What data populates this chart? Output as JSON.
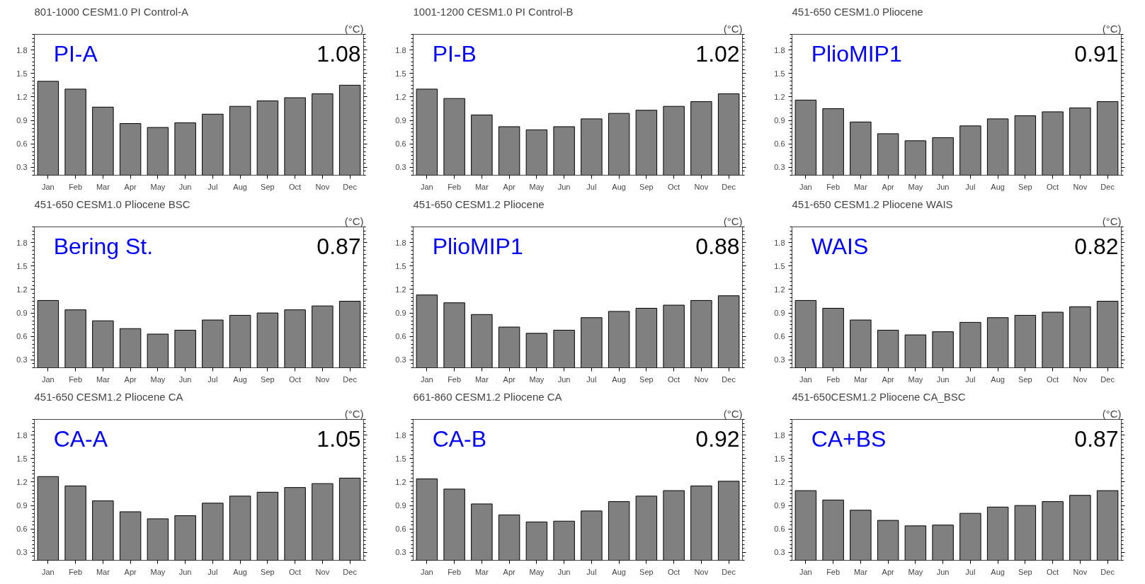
{
  "chart_data": [
    {
      "type": "bar",
      "title": "801-1000   CESM1.0 PI Control-A",
      "ylabel": "(°C)",
      "annotations": [
        "PI-A",
        "1.08"
      ],
      "categories": [
        "Jan",
        "Feb",
        "Mar",
        "Apr",
        "May",
        "Jun",
        "Jul",
        "Aug",
        "Sep",
        "Oct",
        "Nov",
        "Dec"
      ],
      "values": [
        1.4,
        1.3,
        1.07,
        0.86,
        0.81,
        0.87,
        0.98,
        1.08,
        1.15,
        1.19,
        1.24,
        1.35
      ],
      "color": "#808080",
      "ylim": [
        0.2,
        2.0
      ],
      "yticks": [
        0.3,
        0.6,
        0.9,
        1.2,
        1.5,
        1.8
      ],
      "grid": false
    },
    {
      "type": "bar",
      "title": "1001-1200 CESM1.0 PI Control-B",
      "ylabel": "(°C)",
      "annotations": [
        "PI-B",
        "1.02"
      ],
      "categories": [
        "Jan",
        "Feb",
        "Mar",
        "Apr",
        "May",
        "Jun",
        "Jul",
        "Aug",
        "Sep",
        "Oct",
        "Nov",
        "Dec"
      ],
      "values": [
        1.3,
        1.18,
        0.97,
        0.82,
        0.78,
        0.82,
        0.92,
        0.99,
        1.03,
        1.08,
        1.14,
        1.24
      ],
      "color": "#808080",
      "ylim": [
        0.2,
        2.0
      ],
      "yticks": [
        0.3,
        0.6,
        0.9,
        1.2,
        1.5,
        1.8
      ],
      "grid": false
    },
    {
      "type": "bar",
      "title": "451-650      CESM1.0 Pliocene",
      "ylabel": "(°C)",
      "annotations": [
        "PlioMIP1",
        "0.91"
      ],
      "categories": [
        "Jan",
        "Feb",
        "Mar",
        "Apr",
        "May",
        "Jun",
        "Jul",
        "Aug",
        "Sep",
        "Oct",
        "Nov",
        "Dec"
      ],
      "values": [
        1.16,
        1.05,
        0.88,
        0.73,
        0.64,
        0.68,
        0.83,
        0.92,
        0.96,
        1.01,
        1.06,
        1.14
      ],
      "color": "#808080",
      "ylim": [
        0.2,
        2.0
      ],
      "yticks": [
        0.3,
        0.6,
        0.9,
        1.2,
        1.5,
        1.8
      ],
      "grid": false
    },
    {
      "type": "bar",
      "title": "451-650   CESM1.0 Pliocene BSC",
      "ylabel": "(°C)",
      "annotations": [
        "Bering St.",
        "0.87"
      ],
      "categories": [
        "Jan",
        "Feb",
        "Mar",
        "Apr",
        "May",
        "Jun",
        "Jul",
        "Aug",
        "Sep",
        "Oct",
        "Nov",
        "Dec"
      ],
      "values": [
        1.06,
        0.94,
        0.8,
        0.7,
        0.63,
        0.68,
        0.81,
        0.87,
        0.9,
        0.94,
        0.99,
        1.05
      ],
      "color": "#808080",
      "ylim": [
        0.2,
        2.0
      ],
      "yticks": [
        0.3,
        0.6,
        0.9,
        1.2,
        1.5,
        1.8
      ],
      "grid": false
    },
    {
      "type": "bar",
      "title": "451-650      CESM1.2 Pliocene",
      "ylabel": "(°C)",
      "annotations": [
        "PlioMIP1",
        "0.88"
      ],
      "categories": [
        "Jan",
        "Feb",
        "Mar",
        "Apr",
        "May",
        "Jun",
        "Jul",
        "Aug",
        "Sep",
        "Oct",
        "Nov",
        "Dec"
      ],
      "values": [
        1.13,
        1.03,
        0.88,
        0.72,
        0.64,
        0.68,
        0.84,
        0.92,
        0.96,
        1.0,
        1.06,
        1.12
      ],
      "color": "#808080",
      "ylim": [
        0.2,
        2.0
      ],
      "yticks": [
        0.3,
        0.6,
        0.9,
        1.2,
        1.5,
        1.8
      ],
      "grid": false
    },
    {
      "type": "bar",
      "title": "451-650  CESM1.2 Pliocene WAIS",
      "ylabel": "(°C)",
      "annotations": [
        "WAIS",
        "0.82"
      ],
      "categories": [
        "Jan",
        "Feb",
        "Mar",
        "Apr",
        "May",
        "Jun",
        "Jul",
        "Aug",
        "Sep",
        "Oct",
        "Nov",
        "Dec"
      ],
      "values": [
        1.06,
        0.96,
        0.81,
        0.68,
        0.62,
        0.66,
        0.78,
        0.84,
        0.87,
        0.91,
        0.98,
        1.05
      ],
      "color": "#808080",
      "ylim": [
        0.2,
        2.0
      ],
      "yticks": [
        0.3,
        0.6,
        0.9,
        1.2,
        1.5,
        1.8
      ],
      "grid": false
    },
    {
      "type": "bar",
      "title": "451-650    CESM1.2 Pliocene CA",
      "ylabel": "(°C)",
      "annotations": [
        "CA-A",
        "1.05"
      ],
      "categories": [
        "Jan",
        "Feb",
        "Mar",
        "Apr",
        "May",
        "Jun",
        "Jul",
        "Aug",
        "Sep",
        "Oct",
        "Nov",
        "Dec"
      ],
      "values": [
        1.27,
        1.15,
        0.96,
        0.82,
        0.73,
        0.77,
        0.93,
        1.02,
        1.07,
        1.13,
        1.18,
        1.25
      ],
      "color": "#808080",
      "ylim": [
        0.2,
        2.0
      ],
      "yticks": [
        0.3,
        0.6,
        0.9,
        1.2,
        1.5,
        1.8
      ],
      "grid": false
    },
    {
      "type": "bar",
      "title": "661-860    CESM1.2 Pliocene CA",
      "ylabel": "(°C)",
      "annotations": [
        "CA-B",
        "0.92"
      ],
      "categories": [
        "Jan",
        "Feb",
        "Mar",
        "Apr",
        "May",
        "Jun",
        "Jul",
        "Aug",
        "Sep",
        "Oct",
        "Nov",
        "Dec"
      ],
      "values": [
        1.24,
        1.11,
        0.92,
        0.78,
        0.69,
        0.7,
        0.83,
        0.95,
        1.02,
        1.09,
        1.15,
        1.21
      ],
      "color": "#808080",
      "ylim": [
        0.2,
        2.0
      ],
      "yticks": [
        0.3,
        0.6,
        0.9,
        1.2,
        1.5,
        1.8
      ],
      "grid": false
    },
    {
      "type": "bar",
      "title": "451-650CESM1.2 Pliocene CA_BSC",
      "ylabel": "(°C)",
      "annotations": [
        "CA+BS",
        "0.87"
      ],
      "categories": [
        "Jan",
        "Feb",
        "Mar",
        "Apr",
        "May",
        "Jun",
        "Jul",
        "Aug",
        "Sep",
        "Oct",
        "Nov",
        "Dec"
      ],
      "values": [
        1.09,
        0.97,
        0.84,
        0.71,
        0.64,
        0.65,
        0.8,
        0.88,
        0.9,
        0.95,
        1.03,
        1.09
      ],
      "color": "#808080",
      "ylim": [
        0.2,
        2.0
      ],
      "yticks": [
        0.3,
        0.6,
        0.9,
        1.2,
        1.5,
        1.8
      ],
      "grid": false
    }
  ]
}
